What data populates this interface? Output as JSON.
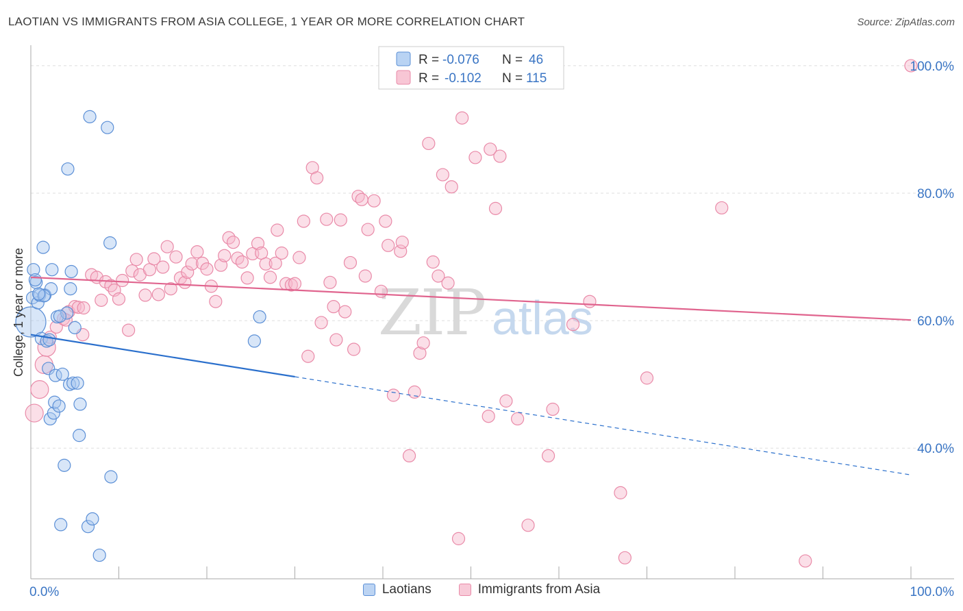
{
  "header": {
    "title": "LAOTIAN VS IMMIGRANTS FROM ASIA COLLEGE, 1 YEAR OR MORE CORRELATION CHART",
    "source": "Source: ZipAtlas.com"
  },
  "watermark": {
    "zip": "ZIP",
    "atlas": "atlas"
  },
  "colors": {
    "blue_fill": "#a8c8f0",
    "blue_stroke": "#5b8fd6",
    "blue_line": "#2a6fcc",
    "pink_fill": "#f6b8cb",
    "pink_stroke": "#e98aa8",
    "pink_line": "#e0648e",
    "axis_text": "#3a75c4"
  },
  "stats": {
    "laotians": {
      "r_label": "R =",
      "r_value": "-0.076",
      "n_label": "N =",
      "n_value": "46"
    },
    "asia": {
      "r_label": "R =",
      "r_value": "-0.102",
      "n_label": "N =",
      "n_value": "115"
    }
  },
  "chart_data": {
    "type": "scatter",
    "title": "LAOTIAN VS IMMIGRANTS FROM ASIA COLLEGE, 1 YEAR OR MORE CORRELATION CHART",
    "xlabel": "",
    "ylabel": "College, 1 year or more",
    "xlim": [
      0,
      100
    ],
    "ylim": [
      19.5,
      103
    ],
    "x_tick_labels": [
      "0.0%",
      "100.0%"
    ],
    "y_tick_values": [
      40,
      60,
      80,
      100
    ],
    "y_tick_labels": [
      "40.0%",
      "60.0%",
      "80.0%",
      "100.0%"
    ],
    "legend_position": "top-center",
    "series": [
      {
        "name": "Laotians",
        "color": "blue",
        "trend": {
          "x0": 0,
          "y0": 57.8,
          "x1": 30,
          "y1": 51.2,
          "dashed_to": {
            "x": 100,
            "y": 35.8
          }
        },
        "points": [
          {
            "x": 0.0,
            "y": 59.8,
            "s": 3
          },
          {
            "x": 0.2,
            "y": 63.6,
            "s": 1
          },
          {
            "x": 0.3,
            "y": 68.0,
            "s": 1
          },
          {
            "x": 0.6,
            "y": 66.0,
            "s": 1
          },
          {
            "x": 0.8,
            "y": 62.8,
            "s": 1
          },
          {
            "x": 1.0,
            "y": 64.0,
            "s": 1
          },
          {
            "x": 1.2,
            "y": 57.2,
            "s": 1
          },
          {
            "x": 1.4,
            "y": 71.5,
            "s": 1
          },
          {
            "x": 1.6,
            "y": 64.0,
            "s": 1
          },
          {
            "x": 1.8,
            "y": 56.8,
            "s": 1
          },
          {
            "x": 2.0,
            "y": 52.5,
            "s": 1
          },
          {
            "x": 2.2,
            "y": 44.6,
            "s": 1
          },
          {
            "x": 2.3,
            "y": 65.0,
            "s": 1
          },
          {
            "x": 2.4,
            "y": 68.0,
            "s": 1
          },
          {
            "x": 2.6,
            "y": 45.5,
            "s": 1
          },
          {
            "x": 2.7,
            "y": 47.2,
            "s": 1
          },
          {
            "x": 2.8,
            "y": 51.4,
            "s": 1
          },
          {
            "x": 3.0,
            "y": 60.6,
            "s": 1
          },
          {
            "x": 3.2,
            "y": 46.6,
            "s": 1
          },
          {
            "x": 3.4,
            "y": 28.0,
            "s": 1
          },
          {
            "x": 3.6,
            "y": 51.6,
            "s": 1
          },
          {
            "x": 3.8,
            "y": 37.3,
            "s": 1
          },
          {
            "x": 4.1,
            "y": 61.2,
            "s": 1
          },
          {
            "x": 4.2,
            "y": 83.8,
            "s": 1
          },
          {
            "x": 4.4,
            "y": 50.0,
            "s": 1
          },
          {
            "x": 4.5,
            "y": 65.0,
            "s": 1
          },
          {
            "x": 4.6,
            "y": 67.7,
            "s": 1
          },
          {
            "x": 4.8,
            "y": 50.2,
            "s": 1
          },
          {
            "x": 5.0,
            "y": 58.9,
            "s": 1
          },
          {
            "x": 5.3,
            "y": 50.2,
            "s": 1
          },
          {
            "x": 5.5,
            "y": 42.0,
            "s": 1
          },
          {
            "x": 5.6,
            "y": 46.9,
            "s": 1
          },
          {
            "x": 6.5,
            "y": 27.7,
            "s": 1
          },
          {
            "x": 6.7,
            "y": 92.0,
            "s": 1
          },
          {
            "x": 7.0,
            "y": 28.9,
            "s": 1
          },
          {
            "x": 7.8,
            "y": 23.2,
            "s": 1
          },
          {
            "x": 8.7,
            "y": 90.3,
            "s": 1
          },
          {
            "x": 9.1,
            "y": 35.5,
            "s": 1
          },
          {
            "x": 9.0,
            "y": 72.2,
            "s": 1
          },
          {
            "x": 25.4,
            "y": 56.8,
            "s": 1
          },
          {
            "x": 26.0,
            "y": 60.6,
            "s": 1
          },
          {
            "x": 1.5,
            "y": 63.9,
            "s": 1
          },
          {
            "x": 0.9,
            "y": 64.2,
            "s": 1
          },
          {
            "x": 2.1,
            "y": 57.0,
            "s": 1
          },
          {
            "x": 0.5,
            "y": 66.4,
            "s": 1
          },
          {
            "x": 3.3,
            "y": 60.7,
            "s": 1
          }
        ]
      },
      {
        "name": "Immigrants from Asia",
        "color": "pink",
        "trend": {
          "x0": 0,
          "y0": 66.8,
          "x1": 100,
          "y1": 60.1
        },
        "points": [
          {
            "x": 0.4,
            "y": 45.5,
            "s": 2
          },
          {
            "x": 1.0,
            "y": 49.2,
            "s": 2
          },
          {
            "x": 1.5,
            "y": 53.1,
            "s": 2
          },
          {
            "x": 1.8,
            "y": 55.8,
            "s": 2
          },
          {
            "x": 2.2,
            "y": 57.4,
            "s": 1
          },
          {
            "x": 2.9,
            "y": 59.0,
            "s": 1
          },
          {
            "x": 3.7,
            "y": 60.3,
            "s": 1
          },
          {
            "x": 4.3,
            "y": 61.4,
            "s": 1
          },
          {
            "x": 5.0,
            "y": 62.2,
            "s": 1
          },
          {
            "x": 5.4,
            "y": 62.1,
            "s": 1
          },
          {
            "x": 6.0,
            "y": 62.0,
            "s": 1
          },
          {
            "x": 6.9,
            "y": 67.2,
            "s": 1
          },
          {
            "x": 7.5,
            "y": 66.8,
            "s": 1
          },
          {
            "x": 8.0,
            "y": 63.2,
            "s": 1
          },
          {
            "x": 8.5,
            "y": 66.1,
            "s": 1
          },
          {
            "x": 9.1,
            "y": 65.5,
            "s": 1
          },
          {
            "x": 9.5,
            "y": 64.8,
            "s": 1
          },
          {
            "x": 10.0,
            "y": 63.4,
            "s": 1
          },
          {
            "x": 10.4,
            "y": 66.3,
            "s": 1
          },
          {
            "x": 11.1,
            "y": 58.5,
            "s": 1
          },
          {
            "x": 11.5,
            "y": 67.8,
            "s": 1
          },
          {
            "x": 12.0,
            "y": 69.6,
            "s": 1
          },
          {
            "x": 12.4,
            "y": 67.2,
            "s": 1
          },
          {
            "x": 13.0,
            "y": 64.0,
            "s": 1
          },
          {
            "x": 13.5,
            "y": 68.0,
            "s": 1
          },
          {
            "x": 14.0,
            "y": 69.7,
            "s": 1
          },
          {
            "x": 14.5,
            "y": 64.1,
            "s": 1
          },
          {
            "x": 15.0,
            "y": 68.4,
            "s": 1
          },
          {
            "x": 15.5,
            "y": 71.6,
            "s": 1
          },
          {
            "x": 15.9,
            "y": 65.0,
            "s": 1
          },
          {
            "x": 16.5,
            "y": 70.0,
            "s": 1
          },
          {
            "x": 17.0,
            "y": 66.7,
            "s": 1
          },
          {
            "x": 17.5,
            "y": 66.0,
            "s": 1
          },
          {
            "x": 17.8,
            "y": 67.6,
            "s": 1
          },
          {
            "x": 18.3,
            "y": 68.9,
            "s": 1
          },
          {
            "x": 18.9,
            "y": 70.8,
            "s": 1
          },
          {
            "x": 19.5,
            "y": 69.0,
            "s": 1
          },
          {
            "x": 20.0,
            "y": 68.1,
            "s": 1
          },
          {
            "x": 20.5,
            "y": 65.4,
            "s": 1
          },
          {
            "x": 21.0,
            "y": 63.0,
            "s": 1
          },
          {
            "x": 21.6,
            "y": 68.7,
            "s": 1
          },
          {
            "x": 22.0,
            "y": 70.2,
            "s": 1
          },
          {
            "x": 22.5,
            "y": 73.0,
            "s": 1
          },
          {
            "x": 23.0,
            "y": 72.3,
            "s": 1
          },
          {
            "x": 23.5,
            "y": 69.8,
            "s": 1
          },
          {
            "x": 24.0,
            "y": 69.2,
            "s": 1
          },
          {
            "x": 24.6,
            "y": 66.7,
            "s": 1
          },
          {
            "x": 25.2,
            "y": 70.5,
            "s": 1
          },
          {
            "x": 25.8,
            "y": 72.1,
            "s": 1
          },
          {
            "x": 26.2,
            "y": 70.6,
            "s": 1
          },
          {
            "x": 26.7,
            "y": 68.9,
            "s": 1
          },
          {
            "x": 27.2,
            "y": 66.8,
            "s": 1
          },
          {
            "x": 27.8,
            "y": 69.0,
            "s": 1
          },
          {
            "x": 28.0,
            "y": 74.2,
            "s": 1
          },
          {
            "x": 28.5,
            "y": 70.6,
            "s": 1
          },
          {
            "x": 29.0,
            "y": 65.8,
            "s": 1
          },
          {
            "x": 29.6,
            "y": 65.6,
            "s": 1
          },
          {
            "x": 30.0,
            "y": 65.8,
            "s": 1
          },
          {
            "x": 30.5,
            "y": 69.9,
            "s": 1
          },
          {
            "x": 31.0,
            "y": 75.6,
            "s": 1
          },
          {
            "x": 31.5,
            "y": 54.4,
            "s": 1
          },
          {
            "x": 32.0,
            "y": 84.0,
            "s": 1
          },
          {
            "x": 32.5,
            "y": 82.4,
            "s": 1
          },
          {
            "x": 33.0,
            "y": 59.7,
            "s": 1
          },
          {
            "x": 33.6,
            "y": 75.9,
            "s": 1
          },
          {
            "x": 34.0,
            "y": 66.0,
            "s": 1
          },
          {
            "x": 34.4,
            "y": 62.2,
            "s": 1
          },
          {
            "x": 34.7,
            "y": 57.0,
            "s": 1
          },
          {
            "x": 35.2,
            "y": 75.8,
            "s": 1
          },
          {
            "x": 35.7,
            "y": 61.4,
            "s": 1
          },
          {
            "x": 36.3,
            "y": 69.1,
            "s": 1
          },
          {
            "x": 36.7,
            "y": 55.5,
            "s": 1
          },
          {
            "x": 37.2,
            "y": 79.5,
            "s": 1
          },
          {
            "x": 37.6,
            "y": 79.0,
            "s": 1
          },
          {
            "x": 38.0,
            "y": 67.0,
            "s": 1
          },
          {
            "x": 38.3,
            "y": 74.3,
            "s": 1
          },
          {
            "x": 39.0,
            "y": 78.8,
            "s": 1
          },
          {
            "x": 39.8,
            "y": 64.6,
            "s": 1
          },
          {
            "x": 40.3,
            "y": 75.6,
            "s": 1
          },
          {
            "x": 40.6,
            "y": 71.8,
            "s": 1
          },
          {
            "x": 41.2,
            "y": 48.3,
            "s": 1
          },
          {
            "x": 42.0,
            "y": 70.9,
            "s": 1
          },
          {
            "x": 42.2,
            "y": 72.3,
            "s": 1
          },
          {
            "x": 43.0,
            "y": 38.8,
            "s": 1
          },
          {
            "x": 43.6,
            "y": 48.8,
            "s": 1
          },
          {
            "x": 44.2,
            "y": 54.9,
            "s": 1
          },
          {
            "x": 44.6,
            "y": 56.5,
            "s": 1
          },
          {
            "x": 45.2,
            "y": 87.8,
            "s": 1
          },
          {
            "x": 45.7,
            "y": 69.2,
            "s": 1
          },
          {
            "x": 46.3,
            "y": 67.0,
            "s": 1
          },
          {
            "x": 46.8,
            "y": 82.9,
            "s": 1
          },
          {
            "x": 47.4,
            "y": 65.9,
            "s": 1
          },
          {
            "x": 47.8,
            "y": 81.0,
            "s": 1
          },
          {
            "x": 48.6,
            "y": 25.8,
            "s": 1
          },
          {
            "x": 49.0,
            "y": 91.8,
            "s": 1
          },
          {
            "x": 50.5,
            "y": 85.6,
            "s": 1
          },
          {
            "x": 52.0,
            "y": 45.0,
            "s": 1
          },
          {
            "x": 52.2,
            "y": 86.9,
            "s": 1
          },
          {
            "x": 52.8,
            "y": 77.6,
            "s": 1
          },
          {
            "x": 53.3,
            "y": 85.8,
            "s": 1
          },
          {
            "x": 54.0,
            "y": 47.4,
            "s": 1
          },
          {
            "x": 55.3,
            "y": 44.6,
            "s": 1
          },
          {
            "x": 56.5,
            "y": 27.9,
            "s": 1
          },
          {
            "x": 58.8,
            "y": 38.8,
            "s": 1
          },
          {
            "x": 59.3,
            "y": 46.1,
            "s": 1
          },
          {
            "x": 61.6,
            "y": 59.4,
            "s": 1
          },
          {
            "x": 63.5,
            "y": 63.0,
            "s": 1
          },
          {
            "x": 67.0,
            "y": 33.0,
            "s": 1
          },
          {
            "x": 67.5,
            "y": 22.8,
            "s": 1
          },
          {
            "x": 70.0,
            "y": 51.0,
            "s": 1
          },
          {
            "x": 78.5,
            "y": 77.7,
            "s": 1
          },
          {
            "x": 88.0,
            "y": 22.3,
            "s": 1
          },
          {
            "x": 100.0,
            "y": 100.0,
            "s": 1
          },
          {
            "x": 5.9,
            "y": 57.8,
            "s": 1
          },
          {
            "x": 4.0,
            "y": 60.1,
            "s": 1
          }
        ]
      }
    ]
  },
  "legend_bottom": {
    "laotians": "Laotians",
    "asia": "Immigrants from Asia"
  }
}
